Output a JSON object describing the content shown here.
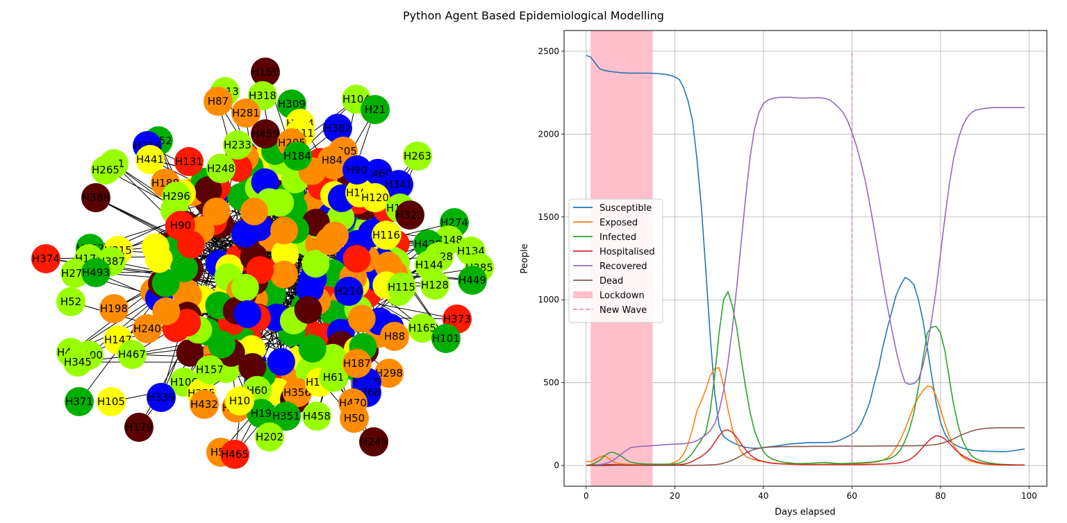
{
  "figure": {
    "title": "Python Agent Based Epidemiological Modelling"
  },
  "network": {
    "state_colors": {
      "susceptible": "#99ff00",
      "exposed": "#ff8c00",
      "infected": "#00b000",
      "hospitalised": "#ff1a00",
      "recovered": "#0000ff",
      "dead": "#5a0000",
      "other": "#ffff00"
    },
    "nodes": [
      {
        "label": "H159",
        "state": "dead"
      },
      {
        "label": "H113",
        "state": "susceptible"
      },
      {
        "label": "H318",
        "state": "susceptible"
      },
      {
        "label": "H87",
        "state": "exposed"
      },
      {
        "label": "H281",
        "state": "exposed"
      },
      {
        "label": "H309",
        "state": "infected"
      },
      {
        "label": "H104",
        "state": "susceptible"
      },
      {
        "label": "H21",
        "state": "infected"
      },
      {
        "label": "H362",
        "state": "recovered"
      },
      {
        "label": "H304",
        "state": "other"
      },
      {
        "label": "H459",
        "state": "dead"
      },
      {
        "label": "H111",
        "state": "other"
      },
      {
        "label": "H252",
        "state": "infected"
      },
      {
        "label": "H216",
        "state": "recovered"
      },
      {
        "label": "H233",
        "state": "susceptible"
      },
      {
        "label": "H205",
        "state": "exposed"
      },
      {
        "label": "H305",
        "state": "exposed"
      },
      {
        "label": "H263",
        "state": "susceptible"
      },
      {
        "label": "H81",
        "state": "susceptible"
      },
      {
        "label": "H441",
        "state": "other"
      },
      {
        "label": "H131",
        "state": "hospitalised"
      },
      {
        "label": "H265",
        "state": "susceptible"
      },
      {
        "label": "H248",
        "state": "susceptible"
      },
      {
        "label": "H184",
        "state": "infected"
      },
      {
        "label": "H84",
        "state": "exposed"
      },
      {
        "label": "H460",
        "state": "recovered"
      },
      {
        "label": "H188",
        "state": "exposed"
      },
      {
        "label": "H388",
        "state": "dead"
      },
      {
        "label": "H296",
        "state": "susceptible"
      },
      {
        "label": "H341",
        "state": "recovered"
      },
      {
        "label": "H191",
        "state": "other"
      },
      {
        "label": "H120",
        "state": "other"
      },
      {
        "label": "H172",
        "state": "susceptible"
      },
      {
        "label": "H323",
        "state": "dead"
      },
      {
        "label": "H274",
        "state": "infected"
      },
      {
        "label": "H148",
        "state": "susceptible"
      },
      {
        "label": "H420",
        "state": "infected"
      },
      {
        "label": "H134",
        "state": "susceptible"
      },
      {
        "label": "H262",
        "state": "infected"
      },
      {
        "label": "H315",
        "state": "other"
      },
      {
        "label": "H374",
        "state": "hospitalised"
      },
      {
        "label": "H176",
        "state": "susceptible"
      },
      {
        "label": "H387",
        "state": "susceptible"
      },
      {
        "label": "H278",
        "state": "susceptible"
      },
      {
        "label": "H493",
        "state": "infected"
      },
      {
        "label": "H328",
        "state": "susceptible"
      },
      {
        "label": "H385",
        "state": "susceptible"
      },
      {
        "label": "H449",
        "state": "infected"
      },
      {
        "label": "H128",
        "state": "susceptible"
      },
      {
        "label": "H52",
        "state": "susceptible"
      },
      {
        "label": "H198",
        "state": "exposed"
      },
      {
        "label": "H373",
        "state": "hospitalised"
      },
      {
        "label": "H165",
        "state": "susceptible"
      },
      {
        "label": "H101",
        "state": "infected"
      },
      {
        "label": "H147",
        "state": "other"
      },
      {
        "label": "H240",
        "state": "exposed"
      },
      {
        "label": "H434",
        "state": "susceptible"
      },
      {
        "label": "H400",
        "state": "susceptible"
      },
      {
        "label": "H345",
        "state": "susceptible"
      },
      {
        "label": "H467",
        "state": "susceptible"
      },
      {
        "label": "H298",
        "state": "exposed"
      },
      {
        "label": "H371",
        "state": "infected"
      },
      {
        "label": "H105",
        "state": "other"
      },
      {
        "label": "H106",
        "state": "susceptible"
      },
      {
        "label": "H339",
        "state": "recovered"
      },
      {
        "label": "H255",
        "state": "other"
      },
      {
        "label": "H432",
        "state": "exposed"
      },
      {
        "label": "H247",
        "state": "exposed"
      },
      {
        "label": "H60",
        "state": "susceptible"
      },
      {
        "label": "H397",
        "state": "dead"
      },
      {
        "label": "H356",
        "state": "exposed"
      },
      {
        "label": "H130",
        "state": "other"
      },
      {
        "label": "H425",
        "state": "recovered"
      },
      {
        "label": "H368",
        "state": "recovered"
      },
      {
        "label": "H470",
        "state": "exposed"
      },
      {
        "label": "H61",
        "state": "susceptible"
      },
      {
        "label": "H19",
        "state": "infected"
      },
      {
        "label": "H351",
        "state": "infected"
      },
      {
        "label": "H458",
        "state": "susceptible"
      },
      {
        "label": "H50",
        "state": "exposed"
      },
      {
        "label": "H179",
        "state": "dead"
      },
      {
        "label": "H202",
        "state": "susceptible"
      },
      {
        "label": "H249",
        "state": "dead"
      },
      {
        "label": "H51",
        "state": "exposed"
      },
      {
        "label": "H465",
        "state": "hospitalised"
      },
      {
        "label": "H157",
        "state": "susceptible"
      },
      {
        "label": "H187",
        "state": "exposed"
      },
      {
        "label": "H88",
        "state": "exposed"
      },
      {
        "label": "H90",
        "state": "recovered"
      },
      {
        "label": "H115",
        "state": "susceptible"
      },
      {
        "label": "H144",
        "state": "susceptible"
      },
      {
        "label": "H116",
        "state": "other"
      },
      {
        "label": "H90",
        "state": "hospitalised"
      },
      {
        "label": "H210",
        "state": "recovered"
      },
      {
        "label": "H10",
        "state": "other"
      }
    ]
  },
  "chart_data": {
    "type": "line",
    "xlabel": "Days elapsed",
    "ylabel": "People",
    "xlim": [
      -5,
      104
    ],
    "ylim": [
      -125,
      2625
    ],
    "xticks": [
      0,
      20,
      40,
      60,
      80,
      100
    ],
    "yticks": [
      0,
      500,
      1000,
      1500,
      2000,
      2500
    ],
    "grid": true,
    "legend_position": "center-left",
    "x": [
      0,
      1,
      2,
      3,
      4,
      5,
      6,
      7,
      8,
      9,
      10,
      11,
      12,
      13,
      14,
      15,
      16,
      17,
      18,
      19,
      20,
      21,
      22,
      23,
      24,
      25,
      26,
      27,
      28,
      29,
      30,
      31,
      32,
      33,
      34,
      35,
      36,
      37,
      38,
      39,
      40,
      41,
      42,
      43,
      44,
      45,
      46,
      47,
      48,
      49,
      50,
      51,
      52,
      53,
      54,
      55,
      56,
      57,
      58,
      59,
      60,
      61,
      62,
      63,
      64,
      65,
      66,
      67,
      68,
      69,
      70,
      71,
      72,
      73,
      74,
      75,
      76,
      77,
      78,
      79,
      80,
      81,
      82,
      83,
      84,
      85,
      86,
      87,
      88,
      89,
      90,
      91,
      92,
      93,
      94,
      95,
      96,
      97,
      98,
      99
    ],
    "series": [
      {
        "name": "Susceptible",
        "color": "#1f77b4",
        "values": [
          2475,
          2465,
          2430,
          2395,
          2385,
          2380,
          2376,
          2373,
          2370,
          2369,
          2368,
          2368,
          2368,
          2368,
          2368,
          2367,
          2365,
          2363,
          2360,
          2355,
          2345,
          2330,
          2280,
          2200,
          2080,
          1850,
          1560,
          1180,
          780,
          440,
          240,
          175,
          155,
          140,
          128,
          118,
          110,
          106,
          104,
          105,
          108,
          112,
          115,
          118,
          122,
          126,
          130,
          132,
          134,
          136,
          138,
          138,
          138,
          138,
          139,
          140,
          143,
          150,
          162,
          175,
          190,
          210,
          250,
          310,
          380,
          490,
          590,
          720,
          830,
          930,
          1030,
          1090,
          1135,
          1120,
          1090,
          1000,
          880,
          710,
          540,
          380,
          260,
          190,
          150,
          130,
          115,
          105,
          98,
          93,
          90,
          88,
          87,
          86,
          85,
          84,
          84,
          85,
          88,
          92,
          96,
          100
        ]
      },
      {
        "name": "Exposed",
        "color": "#ff7f0e",
        "values": [
          25,
          22,
          35,
          50,
          60,
          45,
          25,
          15,
          10,
          8,
          6,
          5,
          5,
          4,
          4,
          4,
          4,
          5,
          6,
          10,
          20,
          35,
          70,
          130,
          220,
          330,
          390,
          460,
          540,
          585,
          590,
          480,
          340,
          220,
          140,
          85,
          55,
          42,
          35,
          28,
          23,
          18,
          15,
          13,
          11,
          10,
          9,
          8,
          7,
          6,
          6,
          6,
          6,
          6,
          7,
          7,
          8,
          9,
          9,
          10,
          11,
          12,
          13,
          15,
          17,
          20,
          25,
          33,
          45,
          70,
          110,
          160,
          220,
          290,
          360,
          410,
          450,
          480,
          475,
          420,
          340,
          250,
          175,
          120,
          80,
          50,
          35,
          25,
          18,
          12,
          8,
          6,
          5,
          4,
          4,
          3,
          3,
          3,
          3,
          3
        ]
      },
      {
        "name": "Infected",
        "color": "#2ca02c",
        "values": [
          0,
          5,
          15,
          30,
          55,
          75,
          80,
          70,
          55,
          35,
          20,
          15,
          12,
          10,
          9,
          8,
          8,
          8,
          8,
          9,
          10,
          15,
          25,
          45,
          75,
          115,
          155,
          200,
          330,
          540,
          800,
          1000,
          1050,
          960,
          830,
          640,
          470,
          320,
          210,
          140,
          85,
          55,
          40,
          30,
          22,
          18,
          15,
          13,
          12,
          12,
          13,
          14,
          16,
          17,
          18,
          16,
          14,
          12,
          12,
          13,
          14,
          15,
          16,
          18,
          20,
          23,
          27,
          32,
          38,
          48,
          65,
          95,
          150,
          220,
          320,
          470,
          640,
          800,
          835,
          840,
          800,
          690,
          520,
          360,
          240,
          150,
          95,
          60,
          40,
          30,
          22,
          16,
          12,
          9,
          7,
          6,
          5,
          4,
          4,
          3
        ]
      },
      {
        "name": "Hospitalised",
        "color": "#d62728",
        "values": [
          2,
          3,
          4,
          5,
          6,
          6,
          6,
          5,
          5,
          4,
          4,
          3,
          3,
          3,
          3,
          3,
          3,
          3,
          3,
          3,
          4,
          5,
          8,
          15,
          25,
          40,
          55,
          75,
          100,
          140,
          180,
          210,
          215,
          200,
          170,
          130,
          95,
          65,
          45,
          32,
          24,
          18,
          14,
          12,
          10,
          9,
          8,
          7,
          7,
          6,
          6,
          6,
          6,
          6,
          6,
          6,
          6,
          6,
          6,
          6,
          6,
          6,
          6,
          6,
          7,
          7,
          8,
          9,
          10,
          12,
          14,
          18,
          25,
          35,
          55,
          80,
          110,
          140,
          165,
          180,
          175,
          160,
          135,
          105,
          80,
          60,
          45,
          33,
          24,
          17,
          12,
          9,
          7,
          5,
          4,
          4,
          3,
          3,
          3,
          3
        ]
      },
      {
        "name": "Recovered",
        "color": "#9467bd",
        "values": [
          0,
          0,
          2,
          5,
          10,
          18,
          30,
          50,
          70,
          90,
          108,
          112,
          115,
          117,
          118,
          120,
          122,
          124,
          126,
          128,
          129,
          130,
          132,
          135,
          140,
          150,
          165,
          185,
          210,
          250,
          330,
          450,
          620,
          830,
          1080,
          1350,
          1620,
          1860,
          2030,
          2130,
          2185,
          2205,
          2215,
          2220,
          2222,
          2222,
          2222,
          2220,
          2218,
          2217,
          2218,
          2219,
          2220,
          2219,
          2215,
          2205,
          2185,
          2160,
          2130,
          2080,
          2010,
          1930,
          1830,
          1720,
          1580,
          1430,
          1270,
          1110,
          960,
          820,
          690,
          580,
          500,
          490,
          495,
          520,
          600,
          720,
          880,
          1060,
          1280,
          1500,
          1700,
          1860,
          1970,
          2050,
          2100,
          2130,
          2145,
          2150,
          2155,
          2158,
          2160,
          2160,
          2160,
          2160,
          2160,
          2160,
          2160,
          2160
        ]
      },
      {
        "name": "Dead",
        "color": "#8c564b",
        "values": [
          0,
          0,
          0,
          0,
          0,
          0,
          1,
          1,
          1,
          1,
          1,
          1,
          1,
          1,
          1,
          1,
          1,
          1,
          1,
          1,
          1,
          1,
          1,
          1,
          1,
          2,
          2,
          3,
          4,
          5,
          8,
          14,
          22,
          32,
          45,
          60,
          75,
          88,
          98,
          104,
          108,
          110,
          112,
          113,
          114,
          114,
          115,
          115,
          115,
          115,
          115,
          116,
          116,
          116,
          116,
          116,
          116,
          117,
          117,
          117,
          117,
          117,
          117,
          117,
          117,
          117,
          118,
          118,
          118,
          118,
          118,
          119,
          119,
          119,
          119,
          120,
          121,
          122,
          124,
          127,
          132,
          140,
          150,
          162,
          175,
          188,
          198,
          208,
          215,
          220,
          224,
          226,
          227,
          228,
          228,
          228,
          228,
          228,
          228,
          228
        ]
      }
    ],
    "lockdown": {
      "name": "Lockdown",
      "color": "#ffc0cb",
      "x_start": 1,
      "x_end": 15
    },
    "new_wave": {
      "name": "New Wave",
      "color": "#e377c2",
      "x": 60
    }
  }
}
